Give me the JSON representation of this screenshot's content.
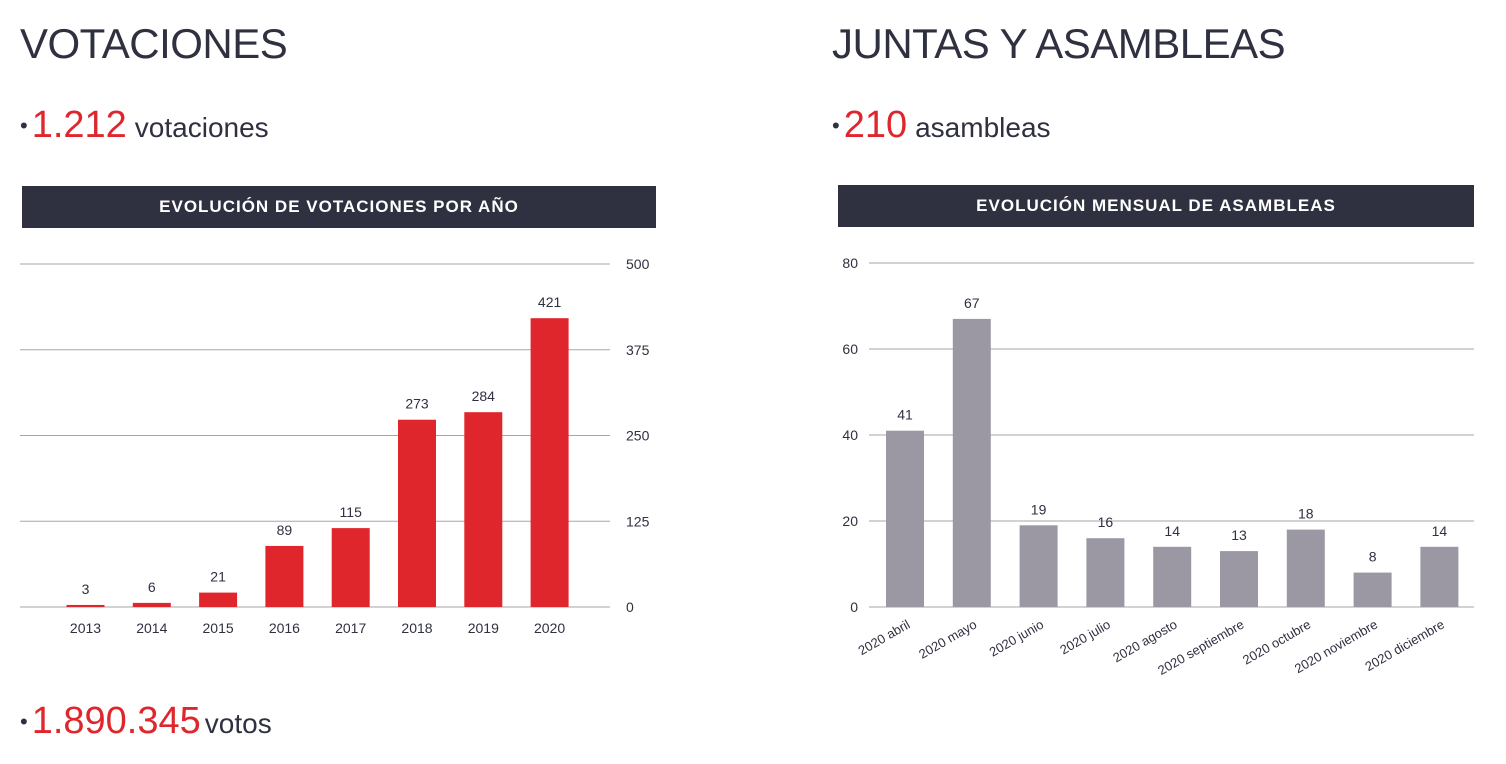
{
  "left": {
    "title": "VOTACIONES",
    "stat1": {
      "bullet": "•",
      "number": "1.212",
      "label": "votaciones"
    },
    "stat2": {
      "bullet": "•",
      "number": "1.890.345",
      "label": "votos"
    }
  },
  "right": {
    "title": "JUNTAS Y ASAMBLEAS",
    "stat1": {
      "bullet": "•",
      "number": "210",
      "label": "asambleas"
    }
  },
  "colors": {
    "accent": "#e0262d",
    "bar_gray": "#9b98a3",
    "header_bg": "#2f3040"
  },
  "chart_data": [
    {
      "type": "bar",
      "title": "EVOLUCIÓN DE VOTACIONES POR AÑO",
      "categories": [
        "2013",
        "2014",
        "2015",
        "2016",
        "2017",
        "2018",
        "2019",
        "2020"
      ],
      "values": [
        3,
        6,
        21,
        89,
        115,
        273,
        284,
        421
      ],
      "ylim": [
        0,
        500
      ],
      "yticks": [
        "0",
        "125",
        "250",
        "375",
        "500"
      ],
      "ytick_values": [
        0,
        125,
        250,
        375,
        500
      ],
      "yaxis_side": "right",
      "grid": true,
      "color": "#e0262d",
      "xlabel": "",
      "ylabel": ""
    },
    {
      "type": "bar",
      "title": "EVOLUCIÓN MENSUAL DE ASAMBLEAS",
      "categories": [
        "2020 abril",
        "2020 mayo",
        "2020 junio",
        "2020 julio",
        "2020 agosto",
        "2020 septiembre",
        "2020 octubre",
        "2020 noviembre",
        "2020 diciembre"
      ],
      "values": [
        41,
        67,
        19,
        16,
        14,
        13,
        18,
        8,
        14
      ],
      "ylim": [
        0,
        80
      ],
      "yticks": [
        "0",
        "20",
        "40",
        "60",
        "80"
      ],
      "ytick_values": [
        0,
        20,
        40,
        60,
        80
      ],
      "yaxis_side": "left",
      "grid": true,
      "color": "#9b98a3",
      "xlabel": "",
      "ylabel": ""
    }
  ]
}
